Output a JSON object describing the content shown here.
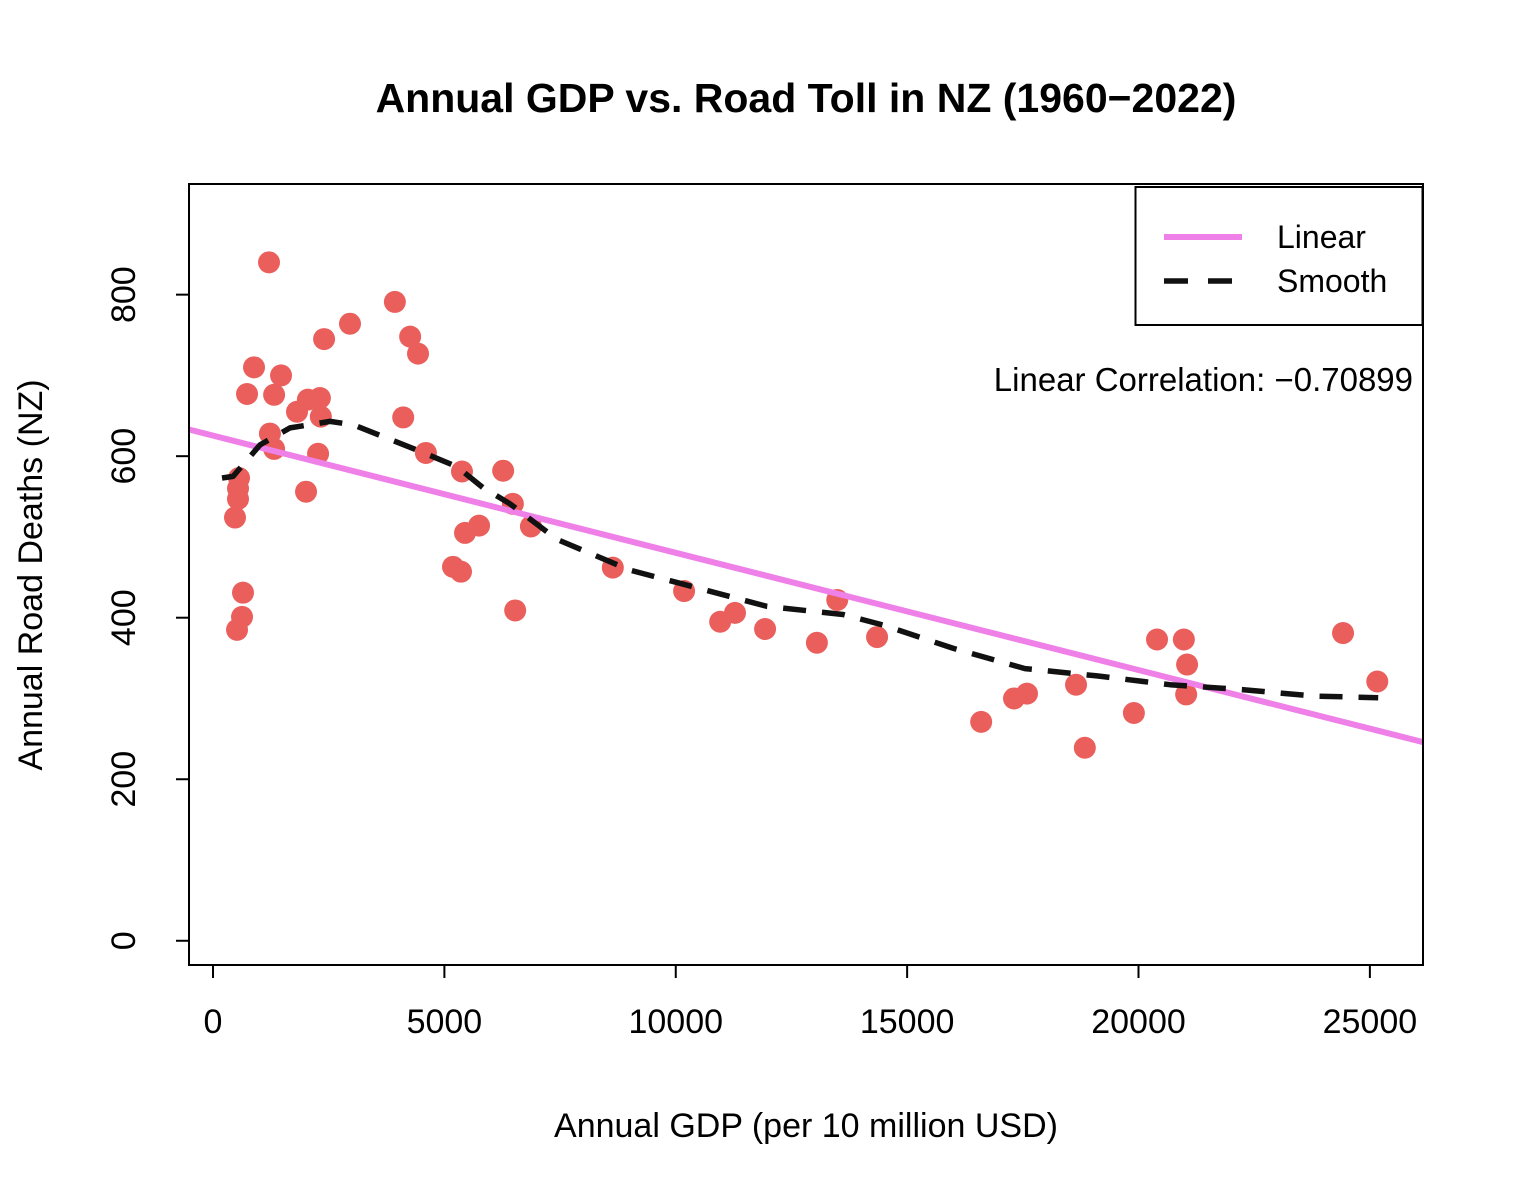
{
  "page": {
    "background": "#ffffff"
  },
  "legend": {
    "position": "top-right",
    "items": [
      {
        "label": "Linear",
        "style": "solid",
        "color": "#ee80e8"
      },
      {
        "label": "Smooth",
        "style": "dashed",
        "color": "#111111"
      }
    ]
  },
  "chart_data": {
    "type": "scatter",
    "title": "Annual GDP vs. Road Toll in NZ (1960−2022)",
    "xlabel": "Annual GDP (per 10 million USD)",
    "ylabel": "Annual Road Deaths (NZ)",
    "annotation": "Linear Correlation: −0.70899",
    "correlation": -0.70899,
    "x_ticks": [
      0,
      5000,
      10000,
      15000,
      20000,
      25000
    ],
    "y_ticks": [
      0,
      200,
      400,
      600,
      800
    ],
    "xlim": [
      -519,
      26148
    ],
    "ylim": [
      -30,
      937
    ],
    "grid": false,
    "point_color": "#ea5f5c",
    "point_radius": 11,
    "points": [
      [
        1210,
        840
      ],
      [
        3930,
        791
      ],
      [
        2960,
        764
      ],
      [
        2400,
        745
      ],
      [
        4260,
        748
      ],
      [
        4430,
        727
      ],
      [
        886,
        710
      ],
      [
        1470,
        700
      ],
      [
        735,
        677
      ],
      [
        1320,
        676
      ],
      [
        2050,
        670
      ],
      [
        2310,
        672
      ],
      [
        1815,
        655
      ],
      [
        2330,
        649
      ],
      [
        4110,
        648
      ],
      [
        1230,
        628
      ],
      [
        1320,
        609
      ],
      [
        2270,
        603
      ],
      [
        4600,
        604
      ],
      [
        5380,
        581
      ],
      [
        562,
        573
      ],
      [
        540,
        560
      ],
      [
        540,
        547
      ],
      [
        2010,
        556
      ],
      [
        475,
        524
      ],
      [
        5446,
        505
      ],
      [
        5749,
        514
      ],
      [
        648,
        431
      ],
      [
        627,
        401
      ],
      [
        519,
        385
      ],
      [
        5186,
        463
      ],
      [
        5359,
        457
      ],
      [
        6270,
        582
      ],
      [
        6480,
        541
      ],
      [
        6870,
        513
      ],
      [
        6530,
        409
      ],
      [
        8640,
        462
      ],
      [
        10180,
        433
      ],
      [
        10960,
        395
      ],
      [
        11280,
        406
      ],
      [
        11930,
        386
      ],
      [
        13050,
        369
      ],
      [
        13490,
        422
      ],
      [
        14350,
        376
      ],
      [
        16600,
        271
      ],
      [
        17310,
        300
      ],
      [
        17590,
        306
      ],
      [
        18650,
        317
      ],
      [
        18840,
        239
      ],
      [
        19900,
        282
      ],
      [
        20400,
        373
      ],
      [
        20980,
        373
      ],
      [
        21050,
        342
      ],
      [
        21030,
        305
      ],
      [
        24420,
        381
      ],
      [
        25160,
        321
      ]
    ],
    "series": [
      {
        "name": "Linear",
        "type": "line",
        "style": "solid",
        "color": "#ee80e8",
        "points": [
          [
            -519,
            633
          ],
          [
            26148,
            246
          ]
        ]
      },
      {
        "name": "Smooth",
        "type": "line",
        "style": "dashed",
        "color": "#111111",
        "points": [
          [
            194,
            573
          ],
          [
            432,
            575
          ],
          [
            1016,
            614
          ],
          [
            1664,
            635
          ],
          [
            2528,
            643
          ],
          [
            3025,
            639
          ],
          [
            4473,
            606
          ],
          [
            5273,
            587
          ],
          [
            5834,
            561
          ],
          [
            6418,
            541
          ],
          [
            7434,
            497
          ],
          [
            9011,
            459
          ],
          [
            10589,
            435
          ],
          [
            11972,
            414
          ],
          [
            13614,
            404
          ],
          [
            14478,
            391
          ],
          [
            16000,
            362
          ],
          [
            17547,
            337
          ],
          [
            19103,
            328
          ],
          [
            20680,
            317
          ],
          [
            22237,
            311
          ],
          [
            23800,
            303
          ],
          [
            25180,
            301
          ]
        ]
      }
    ]
  }
}
